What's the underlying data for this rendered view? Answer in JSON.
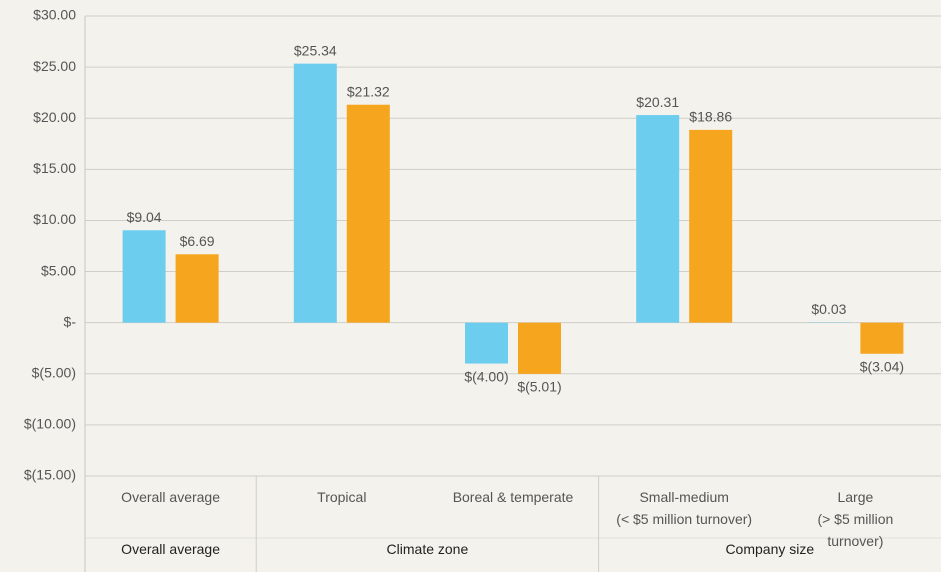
{
  "chart_data": {
    "type": "bar",
    "categories": [
      "Overall average",
      "Tropical",
      "Boreal & temperate",
      "Small-medium\n(< $5 million turnover)",
      "Large\n(> $5 million turnover)"
    ],
    "groups": [
      {
        "label": "Overall average",
        "count": 1
      },
      {
        "label": "Climate zone",
        "count": 2
      },
      {
        "label": "Company size",
        "count": 2
      }
    ],
    "series": [
      {
        "color": "#6dcdef",
        "values": [
          9.04,
          25.34,
          -4.0,
          20.31,
          0.03
        ],
        "value_labels": [
          "$9.04",
          "$25.34",
          "$(4.00)",
          "$20.31",
          "$0.03"
        ]
      },
      {
        "color": "#f6a51e",
        "values": [
          6.69,
          21.32,
          -5.01,
          18.86,
          -3.04
        ],
        "value_labels": [
          "$6.69",
          "$21.32",
          "$(5.01)",
          "$18.86",
          "$(3.04)"
        ]
      }
    ],
    "ylim": [
      -15,
      30
    ],
    "yticks": [
      {
        "value": -15,
        "label": "$(15.00)"
      },
      {
        "value": -10,
        "label": "$(10.00)"
      },
      {
        "value": -5,
        "label": "$(5.00)"
      },
      {
        "value": 0,
        "label": "$-"
      },
      {
        "value": 5,
        "label": "$5.00"
      },
      {
        "value": 10,
        "label": "$10.00"
      },
      {
        "value": 15,
        "label": "$15.00"
      },
      {
        "value": 20,
        "label": "$20.00"
      },
      {
        "value": 25,
        "label": "$25.00"
      },
      {
        "value": 30,
        "label": "$30.00"
      }
    ],
    "grid": true
  }
}
